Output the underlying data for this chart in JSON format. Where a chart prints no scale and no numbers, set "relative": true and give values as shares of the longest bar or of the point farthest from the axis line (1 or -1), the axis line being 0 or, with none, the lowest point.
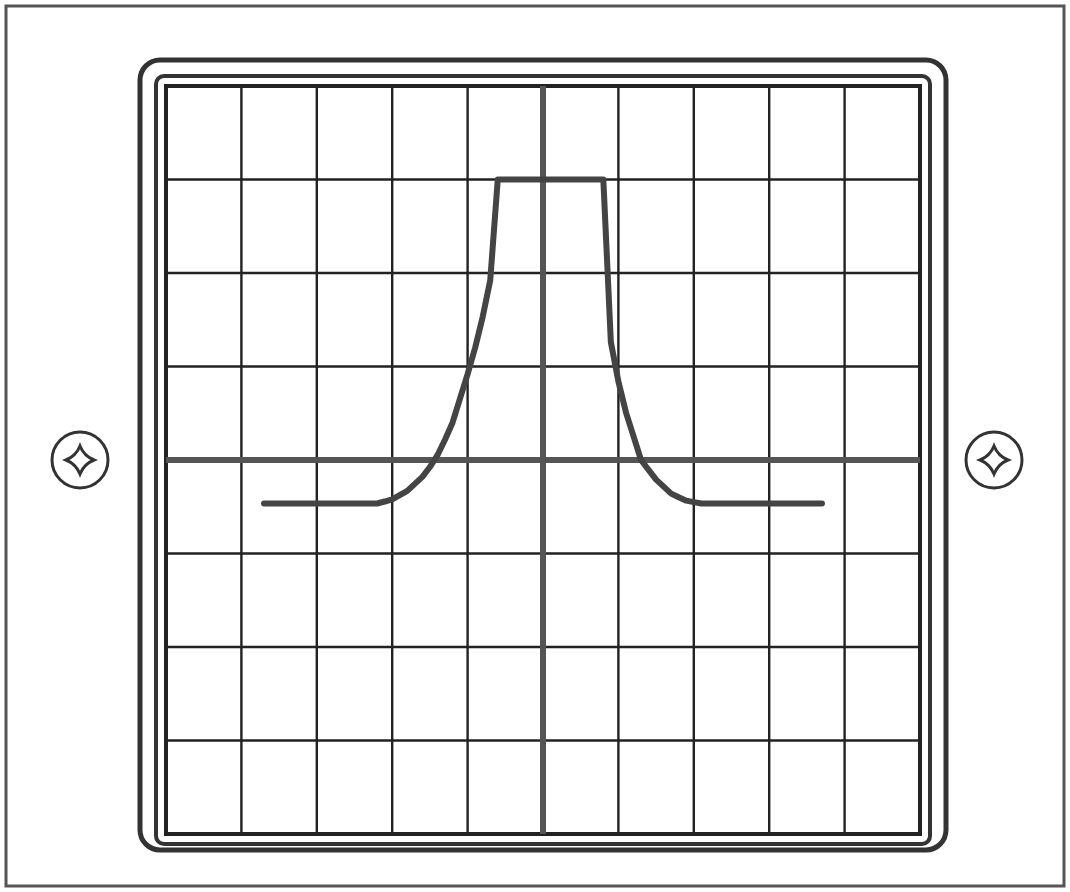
{
  "chart_data": {
    "type": "line",
    "relative": true,
    "grid": true,
    "marker": "none",
    "line_style": "solid",
    "categories": [
      null,
      null,
      null,
      null,
      null,
      null,
      null,
      null,
      null,
      null,
      null,
      null,
      null,
      null,
      null,
      null,
      null,
      null,
      null,
      null,
      null,
      null,
      null,
      null,
      null,
      null,
      null,
      null,
      null,
      null,
      null,
      null,
      null,
      null,
      null,
      null,
      null,
      null,
      null,
      null,
      null,
      null,
      null,
      null,
      null,
      null,
      null,
      null,
      null,
      null,
      null,
      null,
      null,
      null,
      null,
      null,
      null,
      null,
      null,
      null,
      null,
      null,
      null,
      null,
      null,
      null,
      null,
      null,
      null,
      null,
      null,
      null,
      null,
      null,
      null
    ],
    "series": [
      {
        "color": "#444444",
        "values": [
          -0.155,
          -0.155,
          -0.155,
          -0.155,
          -0.155,
          -0.155,
          -0.155,
          -0.155,
          -0.155,
          -0.155,
          -0.155,
          -0.155,
          -0.155,
          -0.155,
          -0.155,
          -0.155,
          -0.148,
          -0.14,
          -0.125,
          -0.11,
          -0.085,
          -0.06,
          -0.025,
          0.017,
          0.072,
          0.133,
          0.22,
          0.306,
          0.4,
          0.51,
          0.64,
          1,
          1,
          1,
          1,
          1,
          1,
          1,
          1,
          1,
          1,
          1,
          1,
          1,
          1,
          1,
          0.42,
          0.28,
          0.17,
          0.085,
          0,
          -0.035,
          -0.07,
          -0.095,
          -0.12,
          -0.133,
          -0.145,
          -0.15,
          -0.155,
          -0.155,
          -0.155,
          -0.155,
          -0.155,
          -0.155,
          -0.155,
          -0.155,
          -0.155,
          -0.155,
          -0.155,
          -0.155,
          -0.155,
          -0.155,
          -0.155,
          -0.155,
          -0.155
        ]
      }
    ]
  }
}
